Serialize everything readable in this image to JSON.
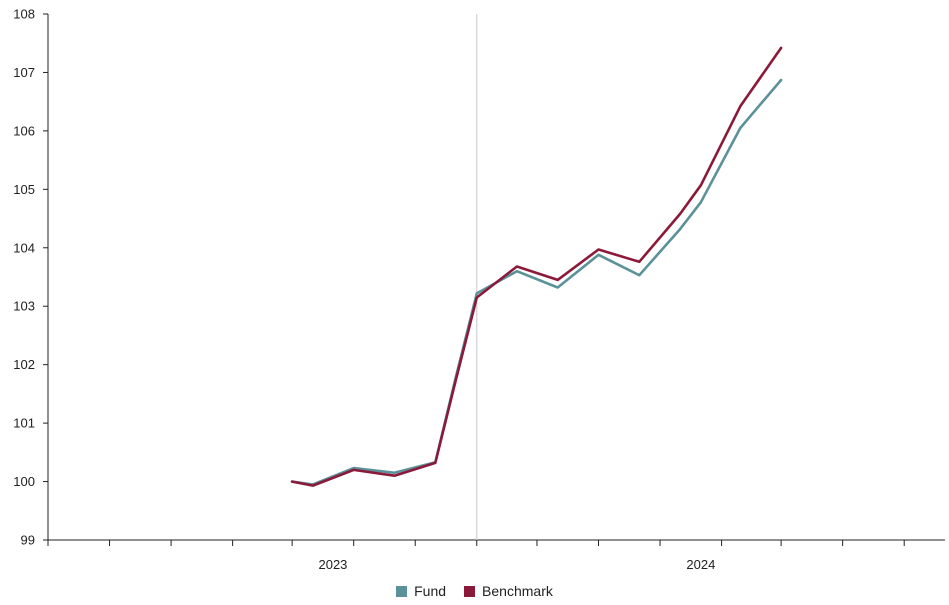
{
  "chart_data": {
    "type": "line",
    "title": "",
    "xlabel": "",
    "ylabel": "",
    "ylim": [
      99,
      108
    ],
    "y_ticks": [
      "99",
      "100",
      "101",
      "102",
      "103",
      "104",
      "105",
      "106",
      "107",
      "108"
    ],
    "x_tick_labels": [
      {
        "label": "2023",
        "date": "2023-07-01"
      },
      {
        "label": "2024",
        "date": "2025-01-01"
      }
    ],
    "xlim": [
      "2022-05-01",
      "2026-01-01"
    ],
    "x_minor_ticks": [
      "2022-05-01",
      "2022-08-01",
      "2022-11-01",
      "2023-02-01",
      "2023-05-01",
      "2023-08-01",
      "2023-11-01",
      "2024-02-01",
      "2024-05-01",
      "2024-08-01",
      "2024-11-01",
      "2025-02-01",
      "2025-05-01",
      "2025-08-01",
      "2025-11-01"
    ],
    "divider_date": "2024-02-01",
    "x": [
      "2023-05-01",
      "2023-06-01",
      "2023-08-01",
      "2023-10-01",
      "2023-12-01",
      "2024-01-01",
      "2024-02-01",
      "2024-04-01",
      "2024-06-01",
      "2024-08-01",
      "2024-10-01",
      "2024-12-01",
      "2025-01-01",
      "2025-03-01",
      "2025-05-01"
    ],
    "series": [
      {
        "name": "Fund",
        "color": "#5b9199",
        "values": [
          100.0,
          99.95,
          100.23,
          100.15,
          100.33,
          101.8,
          103.22,
          103.6,
          103.32,
          103.88,
          103.53,
          104.32,
          104.78,
          106.05,
          106.87
        ]
      },
      {
        "name": "Benchmark",
        "color": "#8b1a3a",
        "values": [
          100.0,
          99.93,
          100.2,
          100.1,
          100.32,
          101.75,
          103.15,
          103.68,
          103.45,
          103.97,
          103.76,
          104.58,
          105.07,
          106.42,
          107.42
        ]
      }
    ],
    "legend_position": "bottom-center",
    "grid": false
  }
}
